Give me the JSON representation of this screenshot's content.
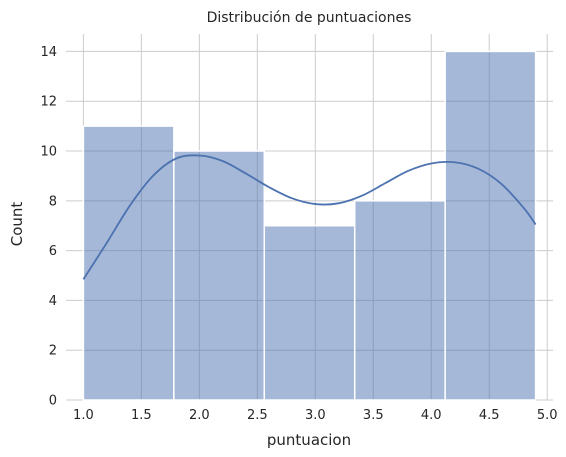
{
  "chart_data": {
    "type": "bar",
    "subtype": "histogram",
    "title": "Distribución de puntuaciones",
    "xlabel": "puntuacion",
    "ylabel": "Count",
    "xlim": [
      0.85,
      5.05
    ],
    "ylim": [
      0,
      14.7
    ],
    "xticks": [
      1.0,
      1.5,
      2.0,
      2.5,
      3.0,
      3.5,
      4.0,
      4.5,
      5.0
    ],
    "xtick_labels": [
      "1.0",
      "1.5",
      "2.0",
      "2.5",
      "3.0",
      "3.5",
      "4.0",
      "4.5",
      "5.0"
    ],
    "yticks": [
      0,
      2,
      4,
      6,
      8,
      10,
      12,
      14
    ],
    "ytick_labels": [
      "0",
      "2",
      "4",
      "6",
      "8",
      "10",
      "12",
      "14"
    ],
    "grid": true,
    "bins": [
      {
        "x0": 1.0,
        "x1": 1.78,
        "count": 11
      },
      {
        "x0": 1.78,
        "x1": 2.56,
        "count": 10
      },
      {
        "x0": 2.56,
        "x1": 3.34,
        "count": 7
      },
      {
        "x0": 3.34,
        "x1": 4.12,
        "count": 8
      },
      {
        "x0": 4.12,
        "x1": 4.9,
        "count": 14
      }
    ],
    "kde": {
      "x": [
        1.0,
        1.2,
        1.4,
        1.6,
        1.8,
        2.0,
        2.2,
        2.4,
        2.6,
        2.8,
        3.0,
        3.2,
        3.4,
        3.6,
        3.8,
        4.0,
        4.2,
        4.4,
        4.6,
        4.8,
        4.9
      ],
      "y": [
        4.85,
        6.3,
        7.8,
        9.0,
        9.7,
        9.82,
        9.6,
        9.1,
        8.55,
        8.1,
        7.87,
        7.9,
        8.2,
        8.7,
        9.2,
        9.5,
        9.55,
        9.3,
        8.7,
        7.7,
        7.05
      ]
    },
    "colors": {
      "bar": "#4c72b0",
      "line": "#4c72b0",
      "grid": "#cccccc",
      "text": "#262626"
    }
  }
}
